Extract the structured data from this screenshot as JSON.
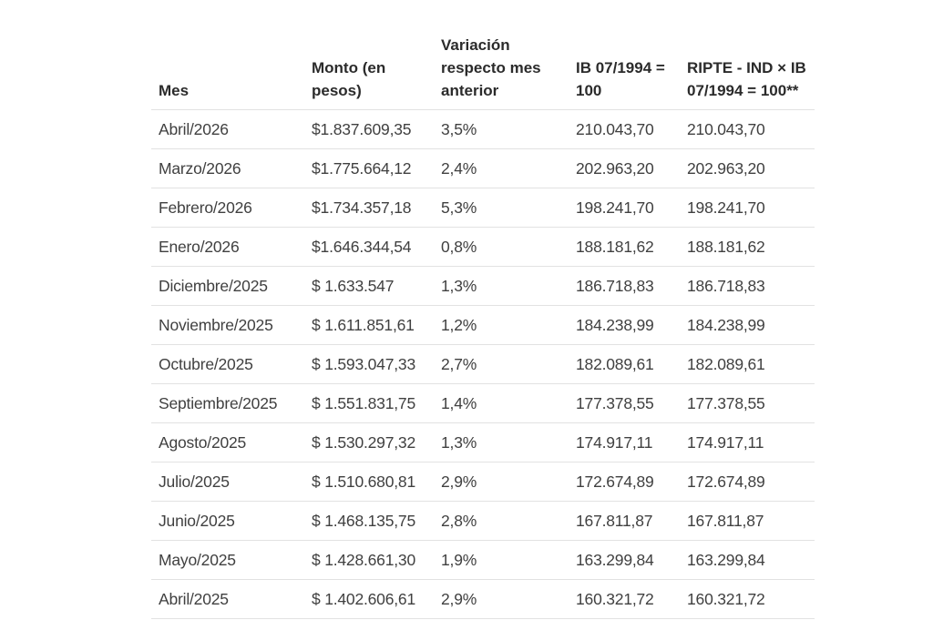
{
  "table": {
    "headers": {
      "mes": "Mes",
      "monto": "Monto (en pesos)",
      "variacion": "Variación respecto mes anterior",
      "ib": "IB 07/1994 = 100",
      "ripte": "RIPTE - IND × IB 07/1994 = 100**"
    },
    "rows": [
      {
        "mes": "Abril/2026",
        "monto": "$1.837.609,35",
        "variacion": "3,5%",
        "ib": "210.043,70",
        "ripte": "210.043,70"
      },
      {
        "mes": "Marzo/2026",
        "monto": "$1.775.664,12",
        "variacion": "2,4%",
        "ib": "202.963,20",
        "ripte": "202.963,20"
      },
      {
        "mes": "Febrero/2026",
        "monto": "$1.734.357,18",
        "variacion": "5,3%",
        "ib": "198.241,70",
        "ripte": "198.241,70"
      },
      {
        "mes": "Enero/2026",
        "monto": "$1.646.344,54",
        "variacion": "0,8%",
        "ib": "188.181,62",
        "ripte": "188.181,62"
      },
      {
        "mes": "Diciembre/2025",
        "monto": "$ 1.633.547",
        "variacion": "1,3%",
        "ib": "186.718,83",
        "ripte": "186.718,83"
      },
      {
        "mes": "Noviembre/2025",
        "monto": "$ 1.611.851,61",
        "variacion": "1,2%",
        "ib": "184.238,99",
        "ripte": "184.238,99"
      },
      {
        "mes": "Octubre/2025",
        "monto": "$ 1.593.047,33",
        "variacion": "2,7%",
        "ib": "182.089,61",
        "ripte": "182.089,61"
      },
      {
        "mes": "Septiembre/2025",
        "monto": "$ 1.551.831,75",
        "variacion": "1,4%",
        "ib": "177.378,55",
        "ripte": "177.378,55"
      },
      {
        "mes": "Agosto/2025",
        "monto": "$ 1.530.297,32",
        "variacion": "1,3%",
        "ib": "174.917,11",
        "ripte": "174.917,11"
      },
      {
        "mes": "Julio/2025",
        "monto": "$ 1.510.680,81",
        "variacion": "2,9%",
        "ib": "172.674,89",
        "ripte": "172.674,89"
      },
      {
        "mes": "Junio/2025",
        "monto": "$ 1.468.135,75",
        "variacion": "2,8%",
        "ib": "167.811,87",
        "ripte": "167.811,87"
      },
      {
        "mes": "Mayo/2025",
        "monto": "$ 1.428.661,30",
        "variacion": "1,9%",
        "ib": "163.299,84",
        "ripte": "163.299,84"
      },
      {
        "mes": "Abril/2025",
        "monto": "$ 1.402.606,61",
        "variacion": "2,9%",
        "ib": "160.321,72",
        "ripte": "160.321,72"
      }
    ]
  }
}
